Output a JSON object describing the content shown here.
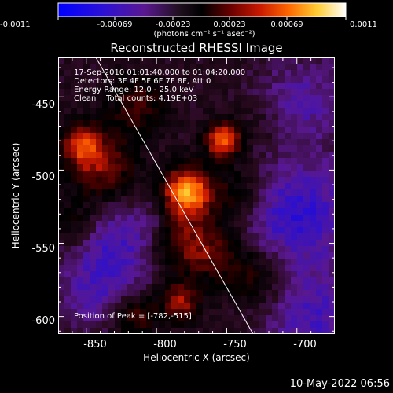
{
  "plot": {
    "title": "Reconstructed RHESSI Image",
    "xlabel": "Heliocentric X (arcsec)",
    "ylabel": "Heliocentric Y (arcsec)",
    "x_ticks": [
      "-850",
      "-800",
      "-750",
      "-700"
    ],
    "y_ticks": [
      "-450",
      "-500",
      "-550",
      "-600"
    ],
    "xlim": [
      -870,
      -673
    ],
    "ylim": [
      -612,
      -423
    ]
  },
  "colorbar": {
    "ticks": [
      "-0.0011",
      "-0.00069",
      "-0.00023",
      "0.00023",
      "0.00069",
      "0.0011"
    ],
    "units": "(photons cm⁻² s⁻¹ asec⁻²)"
  },
  "info": {
    "line1": "17-Sep-2010 01:01:40.000 to 01:04:20.000",
    "line2": "Detectors: 3F 4F 5F 6F 7F 8F, Att 0",
    "line3": "Energy Range: 12.0 - 25.0 keV",
    "line4": "Clean    Total counts: 4.19E+03",
    "peak": "Position of Peak = [-782,-515]"
  },
  "timestamp": "10-May-2022 06:56",
  "colors": {
    "background": "#000000",
    "foreground": "#ffffff",
    "colormap": [
      "#0000ff",
      "#3010c8",
      "#5a1890",
      "#2a0a20",
      "#000000",
      "#4a0000",
      "#c81800",
      "#ff6600",
      "#ffcc33",
      "#ffffff"
    ]
  }
}
